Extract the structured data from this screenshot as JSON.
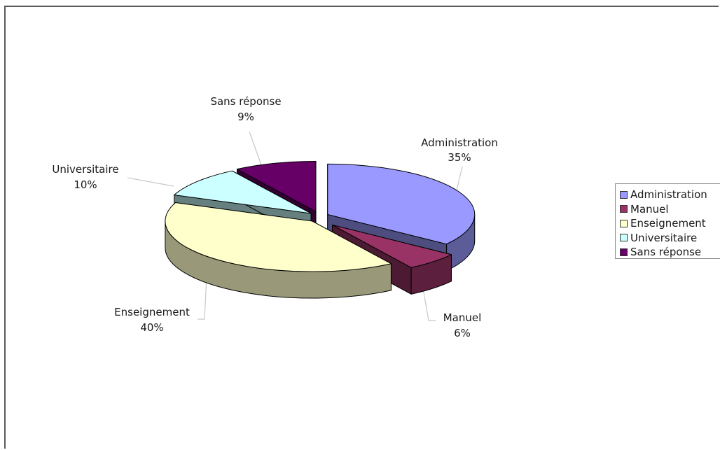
{
  "chart_data": {
    "type": "pie",
    "title": "",
    "categories": [
      "Administration",
      "Manuel",
      "Enseignement",
      "Universitaire",
      "Sans réponse"
    ],
    "values": [
      35,
      6,
      40,
      10,
      9
    ],
    "unit": "%",
    "data_labels": [
      {
        "name": "Administration",
        "value": "35%"
      },
      {
        "name": "Manuel",
        "value": "6%"
      },
      {
        "name": "Enseignement",
        "value": "40%"
      },
      {
        "name": "Universitaire",
        "value": "10%"
      },
      {
        "name": "Sans réponse",
        "value": "9%"
      }
    ],
    "colors": [
      "#9999ff",
      "#993366",
      "#ffffcc",
      "#ccffff",
      "#660066"
    ],
    "style": "3d-exploded",
    "legend_placement": "right",
    "legend": [
      "Administration",
      "Manuel",
      "Enseignement",
      "Universitaire",
      "Sans réponse"
    ]
  }
}
